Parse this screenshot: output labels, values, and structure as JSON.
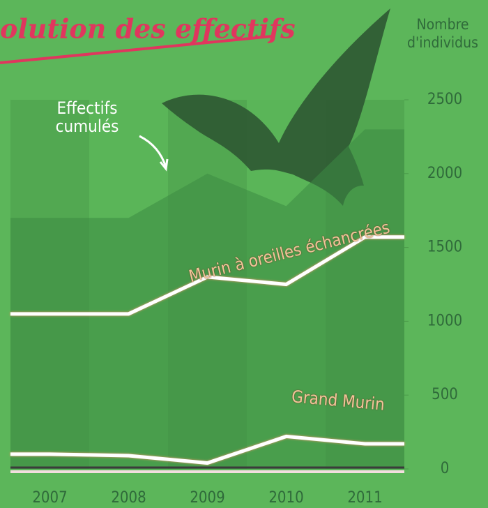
{
  "chart_data": {
    "type": "line",
    "title": "olution des effectifs",
    "ylabel": "Nombre d'individus",
    "categories": [
      "2007",
      "2008",
      "2009",
      "2010",
      "2011"
    ],
    "series": [
      {
        "name": "Effectifs cumulés",
        "color": "#3d8a43",
        "fill": true,
        "values": [
          1700,
          1700,
          2000,
          1780,
          2300
        ]
      },
      {
        "name": "Murin à oreilles échancrées",
        "color": "#ffffff",
        "values": [
          1050,
          1050,
          1300,
          1250,
          1570
        ]
      },
      {
        "name": "Grand Murin",
        "color": "#ffffff",
        "values": [
          100,
          90,
          40,
          220,
          170
        ]
      }
    ],
    "ylim": [
      0,
      2500
    ],
    "yticks": [
      0,
      500,
      1000,
      1500,
      2000,
      2500
    ]
  }
}
